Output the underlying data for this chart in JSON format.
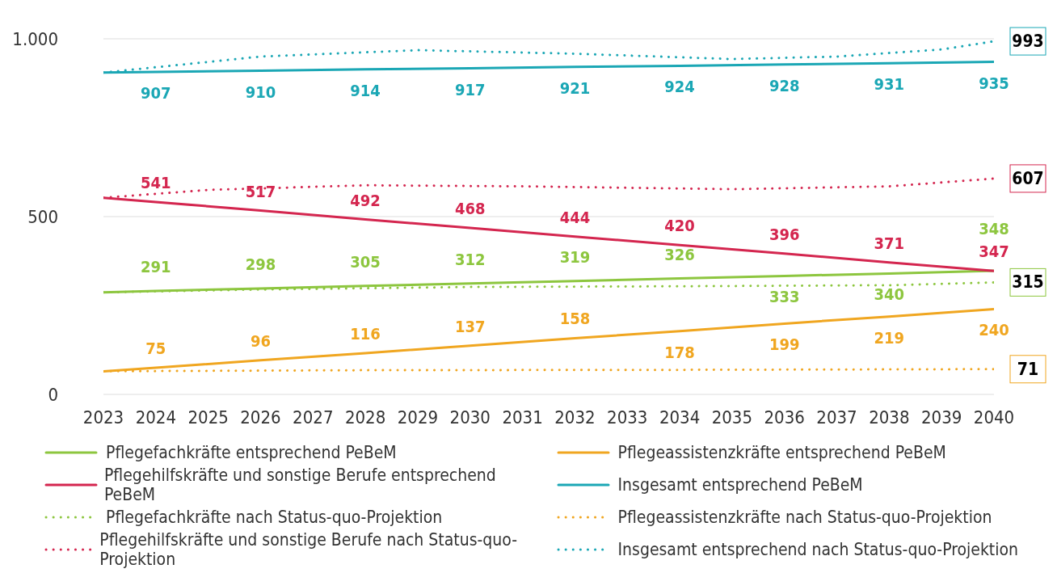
{
  "chart_data": {
    "type": "line",
    "xlim": [
      2023,
      2040
    ],
    "xticks": [
      2023,
      2024,
      2025,
      2026,
      2027,
      2028,
      2029,
      2030,
      2031,
      2032,
      2033,
      2034,
      2035,
      2036,
      2037,
      2038,
      2039,
      2040
    ],
    "ylim": [
      0,
      1000
    ],
    "yticks": [
      0,
      500,
      {
        "value": 1000,
        "label": "1.000"
      }
    ],
    "grid": "y",
    "legend": "bottom",
    "marker": "none",
    "series": [
      {
        "name": "Pflegefachkräfte entsprechend PeBeM",
        "color": "#8dc63f",
        "line_style": "solid",
        "x": [
          2023,
          2024,
          2026,
          2028,
          2030,
          2032,
          2034,
          2036,
          2038,
          2040
        ],
        "values": [
          287,
          291,
          298,
          305,
          312,
          319,
          326,
          333,
          340,
          348
        ],
        "value_labels": [
          null,
          "291",
          "298",
          "305",
          "312",
          "319",
          "326",
          "333",
          "340",
          "348"
        ]
      },
      {
        "name": "Pflegeassistenzkräfte entsprechend PeBeM",
        "color": "#f0a620",
        "line_style": "solid",
        "x": [
          2023,
          2024,
          2026,
          2028,
          2030,
          2032,
          2034,
          2036,
          2038,
          2040
        ],
        "values": [
          65,
          75,
          96,
          116,
          137,
          158,
          178,
          199,
          219,
          240
        ],
        "value_labels": [
          null,
          "75",
          "96",
          "116",
          "137",
          "158",
          "178",
          "199",
          "219",
          "240"
        ]
      },
      {
        "name": "Pflegehilfskräfte und sonstige Berufe entsprechend PeBeM",
        "color": "#d4264f",
        "line_style": "solid",
        "x": [
          2023,
          2024,
          2026,
          2028,
          2030,
          2032,
          2034,
          2036,
          2038,
          2040
        ],
        "values": [
          553,
          541,
          517,
          492,
          468,
          444,
          420,
          396,
          371,
          347
        ],
        "value_labels": [
          null,
          "541",
          "517",
          "492",
          "468",
          "444",
          "420",
          "396",
          "371",
          "347"
        ]
      },
      {
        "name": "Insgesamt entsprechend PeBeM",
        "color": "#1ba7b5",
        "line_style": "solid",
        "x": [
          2023,
          2024,
          2026,
          2028,
          2030,
          2032,
          2034,
          2036,
          2038,
          2040
        ],
        "values": [
          905,
          907,
          910,
          914,
          917,
          921,
          924,
          928,
          931,
          935
        ],
        "value_labels": [
          null,
          "907",
          "910",
          "914",
          "917",
          "921",
          "924",
          "928",
          "931",
          "935"
        ]
      },
      {
        "name": "Pflegefachkräfte nach Status-quo-Projektion",
        "color": "#8dc63f",
        "line_style": "dotted",
        "x": [
          2023,
          2026,
          2030,
          2034,
          2038,
          2040
        ],
        "values": [
          287,
          295,
          302,
          304,
          307,
          315
        ],
        "value_labels": [
          null,
          null,
          null,
          null,
          null,
          "315"
        ]
      },
      {
        "name": "Pflegeassistenzkräfte nach Status-quo-Projektion",
        "color": "#f0a620",
        "line_style": "dotted",
        "x": [
          2023,
          2028,
          2034,
          2040
        ],
        "values": [
          65,
          68,
          69,
          71
        ],
        "value_labels": [
          null,
          null,
          null,
          "71"
        ]
      },
      {
        "name": "Pflegehilfskräfte und sonstige Berufe nach Status-quo-Projektion",
        "color": "#d4264f",
        "line_style": "dotted",
        "x": [
          2023,
          2025,
          2028,
          2031,
          2035,
          2038,
          2040
        ],
        "values": [
          553,
          575,
          588,
          585,
          577,
          585,
          607
        ],
        "value_labels": [
          null,
          null,
          null,
          null,
          null,
          null,
          "607"
        ]
      },
      {
        "name": "Insgesamt entsprechend nach Status-quo-Projektion",
        "color": "#1ba7b5",
        "line_style": "dotted",
        "x": [
          2023,
          2026,
          2029,
          2032,
          2035,
          2037,
          2039,
          2040
        ],
        "values": [
          905,
          950,
          968,
          958,
          943,
          950,
          970,
          993
        ],
        "value_labels": [
          null,
          null,
          null,
          null,
          null,
          null,
          null,
          "993"
        ]
      }
    ]
  }
}
